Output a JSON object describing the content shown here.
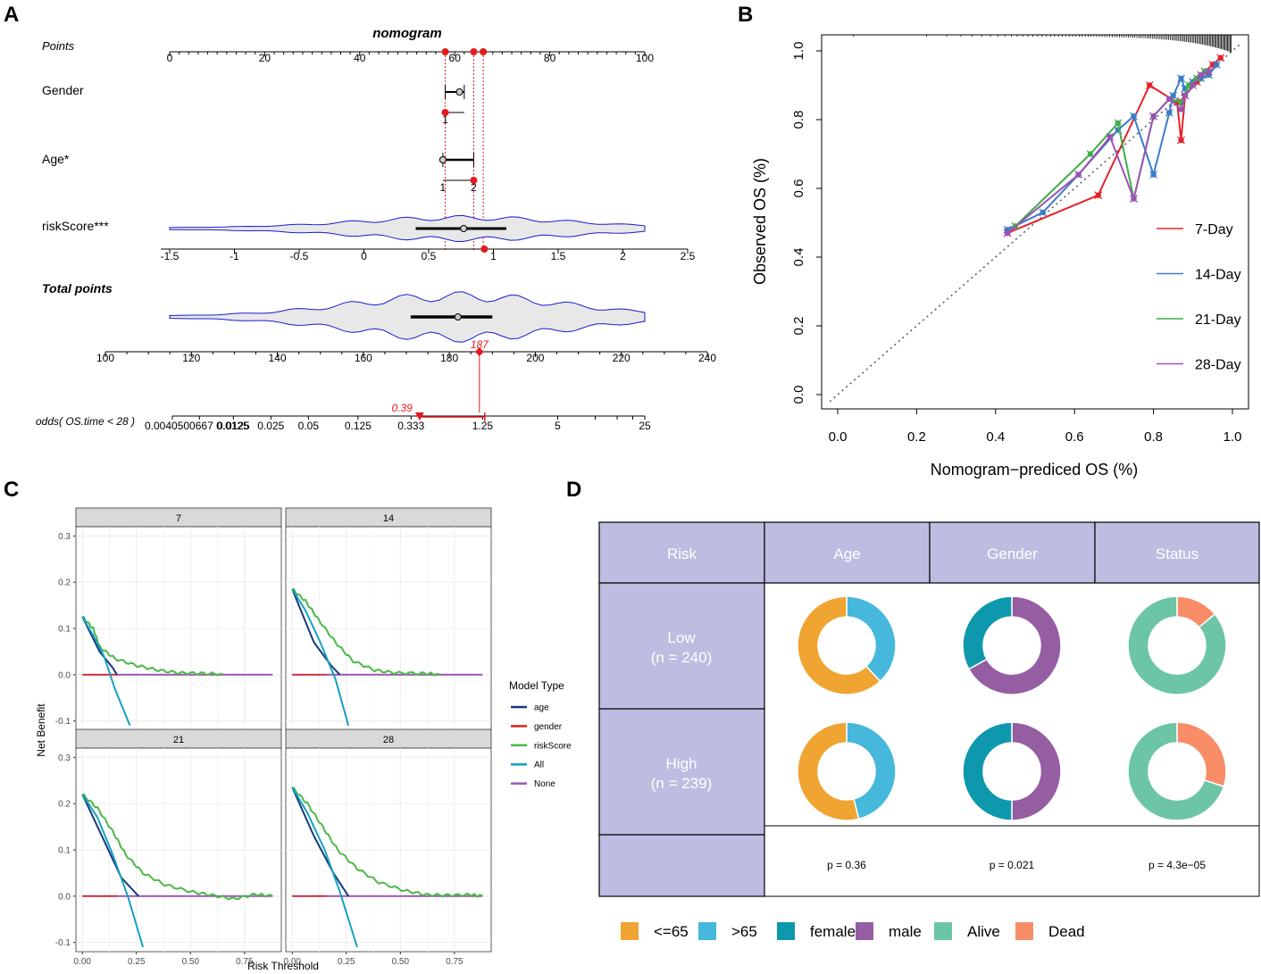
{
  "panel_labels": [
    "A",
    "B",
    "C",
    "D"
  ],
  "chart_data": [
    {
      "panel": "A",
      "type": "nomogram",
      "title": "nomogram",
      "rows": [
        {
          "name": "Points",
          "ticks": [
            "0",
            "20",
            "40",
            "60",
            "80",
            "100"
          ],
          "range": [
            0,
            100
          ],
          "highlighted_points": [
            58,
            64,
            66
          ]
        },
        {
          "name": "Gender",
          "levels": [
            "1"
          ],
          "box_points": [
            58,
            62
          ],
          "median_point": 61,
          "selected_point": 58
        },
        {
          "name": "Age*",
          "levels": [
            "1",
            "2"
          ],
          "box_points": [
            57.5,
            64
          ],
          "median_point": 57.5,
          "selected_point": 64
        },
        {
          "name": "riskScore***",
          "ticks": [
            "-1.5",
            "-1",
            "-0.5",
            "0",
            "0.5",
            "1",
            "1.5",
            "2",
            "2.5"
          ],
          "range": [
            -1.5,
            2.5
          ],
          "iqr": [
            0.4,
            1.1
          ],
          "median": 0.77,
          "selected_value": 0.93
        },
        {
          "name": "Total points",
          "ticks": [
            "100",
            "120",
            "140",
            "160",
            "180",
            "200",
            "220",
            "240"
          ],
          "range": [
            100,
            240
          ],
          "iqr": [
            171,
            190
          ],
          "median": 182,
          "selected_value": 187,
          "selected_label": "187"
        },
        {
          "name": "odds( OS.time < 28 )",
          "ticks": [
            "0.00405",
            "0.00667",
            "0.0125",
            "0.025",
            "0.05",
            "0.125",
            "0.333",
            "1.25",
            "5",
            "25"
          ],
          "tick_label_text": "0.0040500667 0.0125",
          "selected_value": 0.39,
          "selected_label": "0.39"
        }
      ]
    },
    {
      "panel": "B",
      "type": "line",
      "xlabel": "Nomogram−prediced OS (%)",
      "ylabel": "Observed OS (%)",
      "xlim": [
        0,
        1
      ],
      "ylim": [
        0,
        1
      ],
      "xticks": [
        "0.0",
        "0.2",
        "0.4",
        "0.6",
        "0.8",
        "1.0"
      ],
      "yticks": [
        "0.0",
        "0.2",
        "0.4",
        "0.6",
        "0.8",
        "1.0"
      ],
      "reference_line": "dotted diagonal",
      "series": [
        {
          "name": "7-Day",
          "color": "#e4232c",
          "x": [
            0.43,
            0.66,
            0.79,
            0.86,
            0.87,
            0.88,
            0.91,
            0.93,
            0.95,
            0.97
          ],
          "y": [
            0.47,
            0.58,
            0.9,
            0.85,
            0.74,
            0.87,
            0.91,
            0.94,
            0.96,
            0.98
          ]
        },
        {
          "name": "14-Day",
          "color": "#3a7dc9",
          "x": [
            0.43,
            0.52,
            0.61,
            0.71,
            0.75,
            0.8,
            0.84,
            0.85,
            0.87,
            0.88,
            0.9,
            0.92,
            0.94,
            0.96
          ],
          "y": [
            0.48,
            0.53,
            0.64,
            0.77,
            0.81,
            0.64,
            0.82,
            0.87,
            0.92,
            0.89,
            0.91,
            0.92,
            0.93,
            0.96
          ]
        },
        {
          "name": "21-Day",
          "color": "#3fae49",
          "x": [
            0.45,
            0.64,
            0.71,
            0.75,
            0.8,
            0.84,
            0.87,
            0.89,
            0.91,
            0.93
          ],
          "y": [
            0.49,
            0.7,
            0.79,
            0.57,
            0.81,
            0.86,
            0.85,
            0.9,
            0.92,
            0.94
          ]
        },
        {
          "name": "28-Day",
          "color": "#9b53b3",
          "x": [
            0.43,
            0.61,
            0.69,
            0.75,
            0.8,
            0.84,
            0.87,
            0.88,
            0.9,
            0.92,
            0.94
          ],
          "y": [
            0.47,
            0.64,
            0.75,
            0.57,
            0.81,
            0.86,
            0.83,
            0.87,
            0.9,
            0.93,
            0.94
          ]
        }
      ]
    },
    {
      "panel": "C",
      "type": "line",
      "xlabel": "Risk Threshold",
      "ylabel": "Net Benefit",
      "xticks": [
        "0.00",
        "0.25",
        "0.50",
        "0.75"
      ],
      "yticks": [
        "-0.1",
        "0.0",
        "0.1",
        "0.2",
        "0.3"
      ],
      "xlim": [
        -0.03,
        0.92
      ],
      "ylim": [
        -0.12,
        0.32
      ],
      "legend_title": "Model Type",
      "legend": [
        {
          "name": "age",
          "color": "#143a7a"
        },
        {
          "name": "gender",
          "color": "#e0201c"
        },
        {
          "name": "riskScore",
          "color": "#4cb847"
        },
        {
          "name": "All",
          "color": "#16a0c2"
        },
        {
          "name": "None",
          "color": "#9a57b2"
        }
      ],
      "facets": [
        {
          "label": "7",
          "all": [
            [
              0,
              0.125
            ],
            [
              0.05,
              0.085
            ],
            [
              0.1,
              0.04
            ],
            [
              0.15,
              -0.03
            ],
            [
              0.22,
              -0.11
            ]
          ],
          "age": [
            [
              0,
              0.125
            ],
            [
              0.08,
              0.05
            ],
            [
              0.14,
              0.015
            ],
            [
              0.16,
              0
            ]
          ],
          "riskScore": [
            [
              0,
              0.125
            ],
            [
              0.05,
              0.1
            ],
            [
              0.08,
              0.06
            ],
            [
              0.15,
              0.035
            ],
            [
              0.25,
              0.02
            ],
            [
              0.35,
              0.01
            ],
            [
              0.45,
              0.004
            ],
            [
              0.55,
              0.003
            ],
            [
              0.65,
              0.001
            ]
          ],
          "all_end": 0.22
        },
        {
          "label": "14",
          "all": [
            [
              0,
              0.185
            ],
            [
              0.06,
              0.14
            ],
            [
              0.13,
              0.07
            ],
            [
              0.2,
              -0.01
            ],
            [
              0.26,
              -0.11
            ]
          ],
          "age": [
            [
              0,
              0.185
            ],
            [
              0.1,
              0.07
            ],
            [
              0.18,
              0.02
            ],
            [
              0.22,
              0
            ]
          ],
          "riskScore": [
            [
              0,
              0.185
            ],
            [
              0.06,
              0.16
            ],
            [
              0.12,
              0.12
            ],
            [
              0.2,
              0.07
            ],
            [
              0.28,
              0.03
            ],
            [
              0.38,
              0.01
            ],
            [
              0.48,
              0.004
            ],
            [
              0.6,
              0.003
            ],
            [
              0.68,
              0.001
            ]
          ],
          "all_end": 0.26
        },
        {
          "label": "21",
          "all": [
            [
              0,
              0.22
            ],
            [
              0.07,
              0.17
            ],
            [
              0.14,
              0.09
            ],
            [
              0.21,
              0.0
            ],
            [
              0.28,
              -0.11
            ]
          ],
          "age": [
            [
              0,
              0.22
            ],
            [
              0.1,
              0.12
            ],
            [
              0.18,
              0.04
            ],
            [
              0.26,
              0.0
            ]
          ],
          "riskScore": [
            [
              0,
              0.22
            ],
            [
              0.07,
              0.19
            ],
            [
              0.14,
              0.14
            ],
            [
              0.2,
              0.09
            ],
            [
              0.28,
              0.05
            ],
            [
              0.38,
              0.025
            ],
            [
              0.5,
              0.01
            ],
            [
              0.6,
              0.002
            ],
            [
              0.7,
              -0.006
            ],
            [
              0.8,
              0.004
            ],
            [
              0.88,
              0.0
            ]
          ],
          "all_end": 0.28
        },
        {
          "label": "28",
          "all": [
            [
              0,
              0.235
            ],
            [
              0.07,
              0.18
            ],
            [
              0.15,
              0.1
            ],
            [
              0.22,
              0.01
            ],
            [
              0.3,
              -0.11
            ]
          ],
          "age": [
            [
              0,
              0.235
            ],
            [
              0.1,
              0.13
            ],
            [
              0.19,
              0.05
            ],
            [
              0.26,
              0.0
            ]
          ],
          "riskScore": [
            [
              0,
              0.235
            ],
            [
              0.07,
              0.2
            ],
            [
              0.14,
              0.15
            ],
            [
              0.21,
              0.1
            ],
            [
              0.3,
              0.06
            ],
            [
              0.4,
              0.03
            ],
            [
              0.52,
              0.012
            ],
            [
              0.62,
              0.003
            ],
            [
              0.72,
              0.002
            ],
            [
              0.82,
              0.003
            ],
            [
              0.88,
              0.0
            ]
          ],
          "all_end": 0.3
        }
      ]
    },
    {
      "panel": "D",
      "type": "pie",
      "headers": [
        "Risk",
        "Age",
        "Gender",
        "Status"
      ],
      "rows": [
        {
          "label": "Low",
          "n": "(n = 240)",
          "age": [
            0.62,
            0.38
          ],
          "gender": [
            0.33,
            0.67
          ],
          "status": [
            0.86,
            0.14
          ]
        },
        {
          "label": "High",
          "n": "(n = 239)",
          "age": [
            0.54,
            0.46
          ],
          "gender": [
            0.5,
            0.5
          ],
          "status": [
            0.7,
            0.3
          ]
        }
      ],
      "p_values": [
        "p = 0.36",
        "p = 0.021",
        "p = 4.3e−05"
      ],
      "legend": [
        {
          "name": "<=65",
          "color": "#f0a431"
        },
        {
          "name": ">65",
          "color": "#45b8dc"
        },
        {
          "name": "female",
          "color": "#0e98ae"
        },
        {
          "name": "male",
          "color": "#955ea3"
        },
        {
          "name": "Alive",
          "color": "#6cc6a5"
        },
        {
          "name": "Dead",
          "color": "#f88d67"
        }
      ],
      "header_color": "#bcbde0"
    }
  ]
}
